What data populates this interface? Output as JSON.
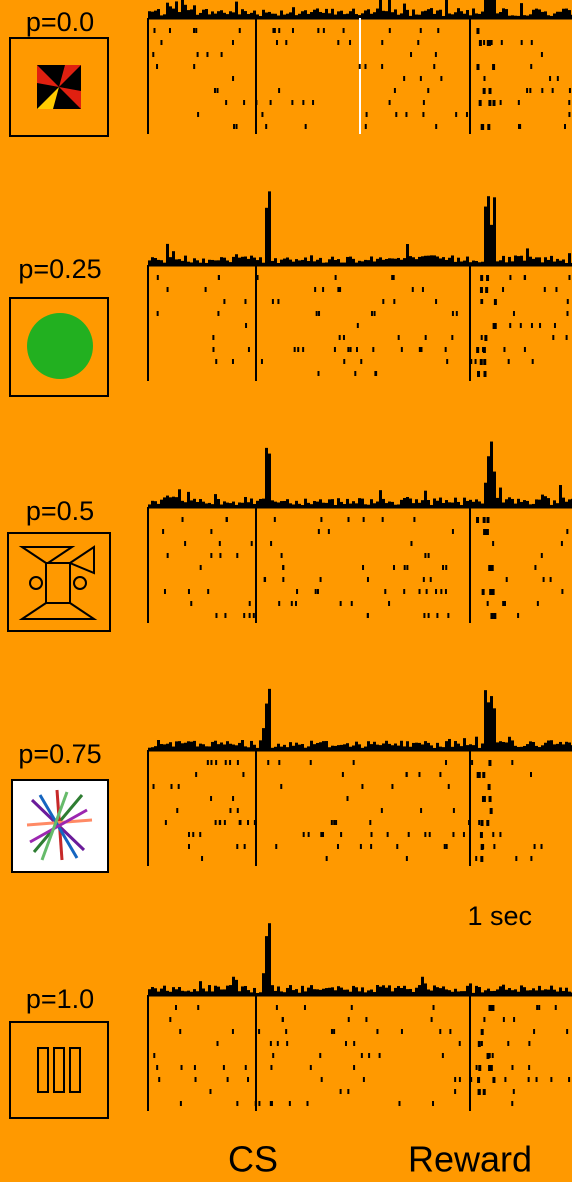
{
  "panels": [
    {
      "label": "p=0.0"
    },
    {
      "label": "p=0.25"
    },
    {
      "label": "p=0.5"
    },
    {
      "label": "p=0.75"
    },
    {
      "label": "p=1.0"
    }
  ],
  "scale_label": "1 sec",
  "events": {
    "cs": "CS",
    "reward": "Reward"
  }
}
